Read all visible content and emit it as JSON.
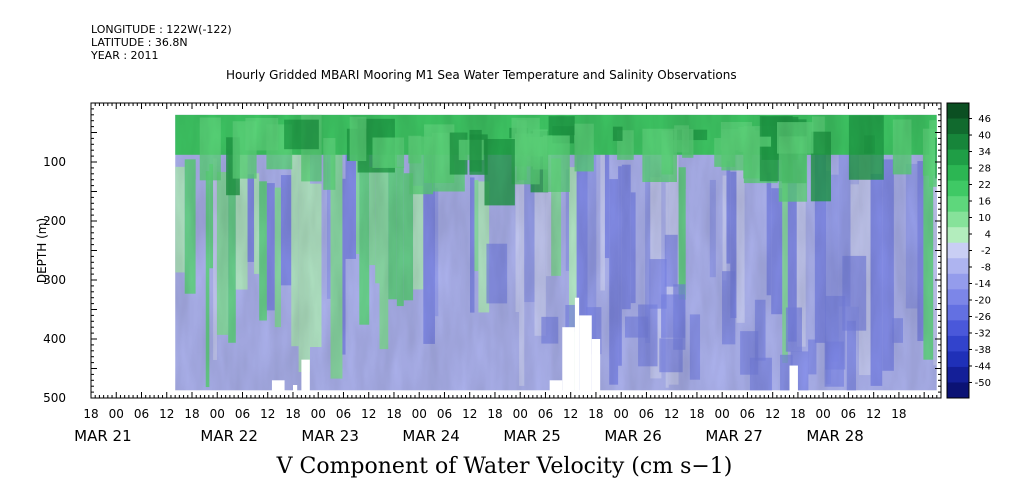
{
  "header": {
    "longitude": "LONGITUDE : 122W(-122)",
    "latitude": "LATITUDE : 36.8N",
    "year": "YEAR : 2011"
  },
  "chart_data": {
    "type": "heatmap",
    "title": "Hourly Gridded MBARI Mooring M1 Sea Water Temperature and Salinity Observations",
    "xlabel": "V Component of Water Velocity (cm s−1)",
    "ylabel": "DEPTH (m)",
    "y_ticks": [
      "100",
      "200",
      "300",
      "400",
      "500"
    ],
    "ylim": [
      500,
      0
    ],
    "x_hour_ticks": [
      "18",
      "00",
      "06",
      "12",
      "18",
      "00",
      "06",
      "12",
      "18",
      "00",
      "06",
      "12",
      "18",
      "00",
      "06",
      "12",
      "18",
      "00",
      "06",
      "12",
      "18",
      "00",
      "06",
      "12",
      "18",
      "00",
      "06",
      "12",
      "18",
      "00",
      "06",
      "12",
      "18"
    ],
    "x_date_labels": [
      "MAR 21",
      "MAR 22",
      "MAR 23",
      "MAR 24",
      "MAR 25",
      "MAR 26",
      "MAR 27",
      "MAR 28"
    ],
    "colorbar_labels": [
      "46",
      "40",
      "34",
      "28",
      "22",
      "16",
      "10",
      "4",
      "-2",
      "-8",
      "-14",
      "-20",
      "-26",
      "-32",
      "-38",
      "-44",
      "-50"
    ],
    "colorbar_colors": [
      "#0b4f22",
      "#116a2e",
      "#17853a",
      "#1f9e46",
      "#2cb653",
      "#3fc965",
      "#5ed77c",
      "#86e29a",
      "#b3edbd",
      "#c9cef4",
      "#aeb4f0",
      "#949cec",
      "#7c86e8",
      "#6370e2",
      "#4a58da",
      "#3243cc",
      "#1f30b8",
      "#141f98",
      "#0b1274"
    ],
    "data_start_hour": 14,
    "data_end_hour": 195,
    "data_top_depth": 20,
    "data_bottom_depth": 487,
    "x_hour_range": [
      -6,
      196
    ]
  }
}
